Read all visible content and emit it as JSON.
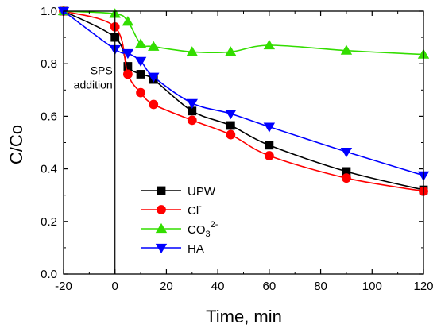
{
  "chart_data": {
    "type": "line",
    "title": "",
    "xlabel": "Time, min",
    "ylabel": "C/Co",
    "xlim": [
      -20,
      120
    ],
    "ylim": [
      0.0,
      1.0
    ],
    "xticks": [
      -20,
      0,
      20,
      40,
      60,
      80,
      100,
      120
    ],
    "yticks": [
      0.0,
      0.2,
      0.4,
      0.6,
      0.8,
      1.0
    ],
    "xtick_labels": [
      "-20",
      "0",
      "20",
      "40",
      "60",
      "80",
      "100",
      "120"
    ],
    "ytick_labels": [
      "0.0",
      "0.2",
      "0.4",
      "0.6",
      "0.8",
      "1.0"
    ],
    "grid": false,
    "legend_position": "bottom-center",
    "annotation": {
      "lines": [
        "SPS",
        "addition"
      ],
      "x": 0
    },
    "series": [
      {
        "name": "UPW",
        "name_base": "UPW",
        "name_sub": "",
        "name_sup": "",
        "color": "#000000",
        "marker": "square",
        "marker_fill": "#000000",
        "x": [
          -20,
          0,
          5,
          10,
          15,
          30,
          45,
          60,
          90,
          120
        ],
        "y": [
          1.0,
          0.9,
          0.79,
          0.76,
          0.74,
          0.62,
          0.565,
          0.49,
          0.39,
          0.32
        ]
      },
      {
        "name": "Cl-",
        "name_base": "Cl",
        "name_sub": "",
        "name_sup": "-",
        "color": "#ff0000",
        "marker": "circle",
        "marker_fill": "#ff0000",
        "x": [
          -20,
          0,
          5,
          10,
          15,
          30,
          45,
          60,
          90,
          120
        ],
        "y": [
          1.0,
          0.94,
          0.76,
          0.69,
          0.645,
          0.585,
          0.53,
          0.45,
          0.365,
          0.315
        ]
      },
      {
        "name": "CO3 2-",
        "name_base": "CO",
        "name_sub": "3",
        "name_sup": "2-",
        "color": "#33dd00",
        "marker": "triangle-up",
        "marker_fill": "#33dd00",
        "x": [
          -20,
          0,
          5,
          10,
          15,
          30,
          45,
          60,
          90,
          120
        ],
        "y": [
          1.0,
          0.99,
          0.96,
          0.875,
          0.865,
          0.845,
          0.845,
          0.87,
          0.85,
          0.835
        ]
      },
      {
        "name": "HA",
        "name_base": "HA",
        "name_sub": "",
        "name_sup": "",
        "color": "#0000ff",
        "marker": "triangle-down",
        "marker_fill": "#0000ff",
        "x": [
          -20,
          0,
          5,
          10,
          15,
          30,
          45,
          60,
          90,
          120
        ],
        "y": [
          1.0,
          0.855,
          0.84,
          0.81,
          0.75,
          0.65,
          0.61,
          0.56,
          0.465,
          0.375
        ]
      }
    ]
  }
}
